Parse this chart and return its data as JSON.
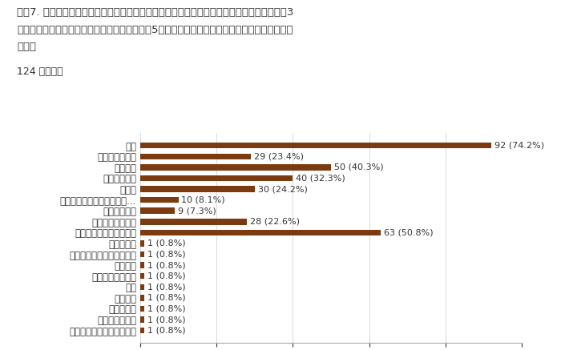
{
  "title_line1": "質問7. 学生が進学先を決める（出願する）に当たって、大きな要因になっていると思われる3",
  "title_line2": "つの選択肢を下記から選んでください。（質問5）で選択した国籍の学生を想定してご回答くだ",
  "title_line3": "さい。",
  "subtitle": "124 件の回答",
  "categories": [
    "学費",
    "自宅からの距離",
    "専攻分野",
    "知名度の高さ",
    "就職率",
    "合同説明会（進学イベント...",
    "学校内説明会",
    "日本語教師の推薦",
    "知人や先輩からの口コミ",
    "校長の推薦",
    "母国での知名度（早稲田）",
    "ビザ更新",
    "学生の日本語能力",
    "成績",
    "親の意向",
    "日本語能力",
    "大学ランキング",
    "賞与型奨学金。生活指導。"
  ],
  "values": [
    92,
    29,
    50,
    40,
    30,
    10,
    9,
    28,
    63,
    1,
    1,
    1,
    1,
    1,
    1,
    1,
    1,
    1
  ],
  "percentages": [
    "74.2%",
    "23.4%",
    "40.3%",
    "32.3%",
    "24.2%",
    "8.1%",
    "7.3%",
    "22.6%",
    "50.8%",
    "0.8%",
    "0.8%",
    "0.8%",
    "0.8%",
    "0.8%",
    "0.8%",
    "0.8%",
    "0.8%",
    "0.8%"
  ],
  "bar_color": "#7B3A10",
  "background_color": "#ffffff",
  "text_color": "#333333",
  "xlim": [
    0,
    100
  ],
  "xticks": [
    0,
    20,
    40,
    60,
    80,
    100
  ],
  "title_fontsize": 9.5,
  "subtitle_fontsize": 9,
  "label_fontsize": 8.5,
  "tick_fontsize": 8.5,
  "value_fontsize": 8.0
}
